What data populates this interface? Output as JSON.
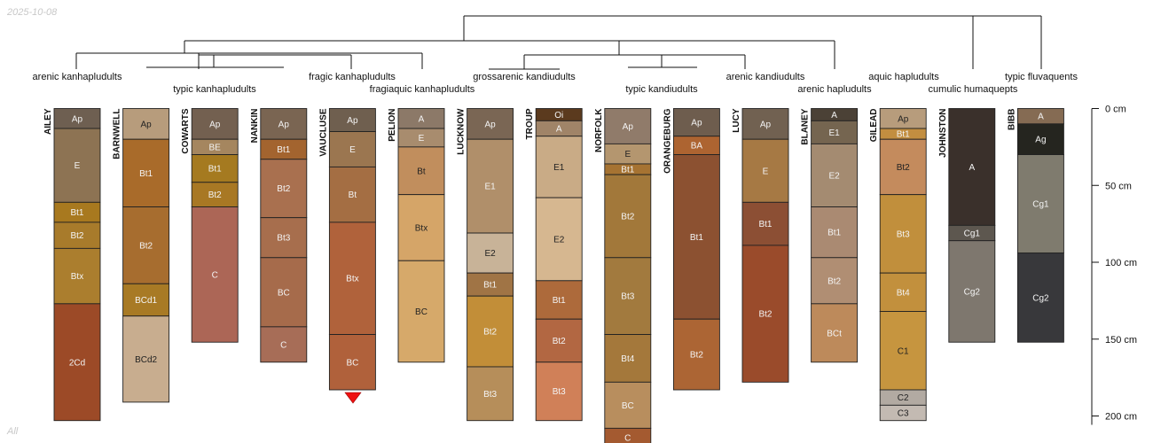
{
  "header": {
    "date": "2025-10-08"
  },
  "footer": {
    "note": "All"
  },
  "depth_axis": {
    "unit": "cm",
    "max_depth": 200,
    "ticks": [
      0,
      50,
      100,
      150,
      200
    ],
    "tick_labels": [
      "0 cm",
      "50 cm",
      "100 cm",
      "150 cm",
      "200 cm"
    ]
  },
  "dendrogram_labels": [
    "arenic kanhapludults",
    "typic kanhapludults",
    "fragic kanhapludults",
    "fragiaquic kanhapludults",
    "grossarenic kandiudults",
    "typic kandiudults",
    "arenic kandiudults",
    "arenic hapludults",
    "aquic hapludults",
    "cumulic humaquepts",
    "typic fluvaquents"
  ],
  "profiles": [
    {
      "name": "AILEY",
      "horizons": [
        {
          "name": "Ap",
          "top": 0,
          "bottom": 13,
          "color": "#6e5f51"
        },
        {
          "name": "E",
          "top": 13,
          "bottom": 61,
          "color": "#8d7353"
        },
        {
          "name": "Bt1",
          "top": 61,
          "bottom": 74,
          "color": "#a8791f"
        },
        {
          "name": "Bt2",
          "top": 74,
          "bottom": 91,
          "color": "#a87b2b"
        },
        {
          "name": "Btx",
          "top": 91,
          "bottom": 127,
          "color": "#ab7e2e"
        },
        {
          "name": "2Cd",
          "top": 127,
          "bottom": 203,
          "color": "#9c4a27"
        }
      ]
    },
    {
      "name": "BARNWELL",
      "horizons": [
        {
          "name": "Ap",
          "top": 0,
          "bottom": 20,
          "color": "#b79c7c"
        },
        {
          "name": "Bt1",
          "top": 20,
          "bottom": 64,
          "color": "#a96b2a"
        },
        {
          "name": "Bt2",
          "top": 64,
          "bottom": 114,
          "color": "#a76d2f"
        },
        {
          "name": "BCd1",
          "top": 114,
          "bottom": 135,
          "color": "#a87a25"
        },
        {
          "name": "BCd2",
          "top": 135,
          "bottom": 191,
          "color": "#c8ad8f"
        }
      ]
    },
    {
      "name": "COWARTS",
      "horizons": [
        {
          "name": "Ap",
          "top": 0,
          "bottom": 20,
          "color": "#736050"
        },
        {
          "name": "BE",
          "top": 20,
          "bottom": 30,
          "color": "#a5865f"
        },
        {
          "name": "Bt1",
          "top": 30,
          "bottom": 48,
          "color": "#a57a20"
        },
        {
          "name": "Bt2",
          "top": 48,
          "bottom": 64,
          "color": "#a87824"
        },
        {
          "name": "C",
          "top": 64,
          "bottom": 152,
          "color": "#ac6656"
        }
      ]
    },
    {
      "name": "NANKIN",
      "horizons": [
        {
          "name": "Ap",
          "top": 0,
          "bottom": 20,
          "color": "#7a6552"
        },
        {
          "name": "Bt1",
          "top": 20,
          "bottom": 33,
          "color": "#a3642f"
        },
        {
          "name": "Bt2",
          "top": 33,
          "bottom": 71,
          "color": "#a9704f"
        },
        {
          "name": "Bt3",
          "top": 71,
          "bottom": 97,
          "color": "#a76e4d"
        },
        {
          "name": "BC",
          "top": 97,
          "bottom": 142,
          "color": "#a66b4b"
        },
        {
          "name": "C",
          "top": 142,
          "bottom": 165,
          "color": "#a76d57"
        }
      ]
    },
    {
      "name": "VAUCLUSE",
      "horizons": [
        {
          "name": "Ap",
          "top": 0,
          "bottom": 15,
          "color": "#6f5f4f"
        },
        {
          "name": "E",
          "top": 15,
          "bottom": 38,
          "color": "#9b7650"
        },
        {
          "name": "Bt",
          "top": 38,
          "bottom": 74,
          "color": "#a46e43"
        },
        {
          "name": "Btx",
          "top": 74,
          "bottom": 147,
          "color": "#b0623b"
        },
        {
          "name": "BC",
          "top": 147,
          "bottom": 183,
          "color": "#b0613b"
        }
      ]
    },
    {
      "name": "PELION",
      "horizons": [
        {
          "name": "A",
          "top": 0,
          "bottom": 13,
          "color": "#8c7968"
        },
        {
          "name": "E",
          "top": 13,
          "bottom": 25,
          "color": "#a88c6e"
        },
        {
          "name": "Bt",
          "top": 25,
          "bottom": 56,
          "color": "#c18e5d"
        },
        {
          "name": "Btx",
          "top": 56,
          "bottom": 99,
          "color": "#d5a568"
        },
        {
          "name": "BC",
          "top": 99,
          "bottom": 165,
          "color": "#d6a96a"
        }
      ]
    },
    {
      "name": "LUCKNOW",
      "horizons": [
        {
          "name": "Ap",
          "top": 0,
          "bottom": 20,
          "color": "#7a6654"
        },
        {
          "name": "E1",
          "top": 20,
          "bottom": 81,
          "color": "#b08f6a"
        },
        {
          "name": "E2",
          "top": 81,
          "bottom": 107,
          "color": "#c8b398"
        },
        {
          "name": "Bt1",
          "top": 107,
          "bottom": 122,
          "color": "#a07445"
        },
        {
          "name": "Bt2",
          "top": 122,
          "bottom": 168,
          "color": "#c28e38"
        },
        {
          "name": "Bt3",
          "top": 168,
          "bottom": 203,
          "color": "#b68e5a"
        }
      ]
    },
    {
      "name": "TROUP",
      "horizons": [
        {
          "name": "Oi",
          "top": 0,
          "bottom": 8,
          "color": "#5b3a1e"
        },
        {
          "name": "A",
          "top": 8,
          "bottom": 18,
          "color": "#a08468"
        },
        {
          "name": "E1",
          "top": 18,
          "bottom": 58,
          "color": "#c9ab86"
        },
        {
          "name": "E2",
          "top": 58,
          "bottom": 112,
          "color": "#d6b790"
        },
        {
          "name": "Bt1",
          "top": 112,
          "bottom": 137,
          "color": "#ad6a3b"
        },
        {
          "name": "Bt2",
          "top": 137,
          "bottom": 165,
          "color": "#b26742"
        },
        {
          "name": "Bt3",
          "top": 165,
          "bottom": 203,
          "color": "#d08058"
        }
      ]
    },
    {
      "name": "NORFOLK",
      "horizons": [
        {
          "name": "Ap",
          "top": 0,
          "bottom": 23,
          "color": "#907b6a"
        },
        {
          "name": "E",
          "top": 23,
          "bottom": 36,
          "color": "#b4966f"
        },
        {
          "name": "Bt1",
          "top": 36,
          "bottom": 43,
          "color": "#a67332"
        },
        {
          "name": "Bt2",
          "top": 43,
          "bottom": 97,
          "color": "#a2783a"
        },
        {
          "name": "Bt3",
          "top": 97,
          "bottom": 147,
          "color": "#a27a3e"
        },
        {
          "name": "Bt4",
          "top": 147,
          "bottom": 178,
          "color": "#a4783b"
        },
        {
          "name": "BC",
          "top": 178,
          "bottom": 208,
          "color": "#b88e5e"
        },
        {
          "name": "C",
          "top": 208,
          "bottom": 220,
          "color": "#a45a30"
        }
      ]
    },
    {
      "name": "ORANGEBURG",
      "horizons": [
        {
          "name": "Ap",
          "top": 0,
          "bottom": 18,
          "color": "#6e5d4e"
        },
        {
          "name": "BA",
          "top": 18,
          "bottom": 30,
          "color": "#ad6431"
        },
        {
          "name": "Bt1",
          "top": 30,
          "bottom": 137,
          "color": "#8c5131"
        },
        {
          "name": "Bt2",
          "top": 137,
          "bottom": 183,
          "color": "#ac6534"
        }
      ]
    },
    {
      "name": "LUCY",
      "horizons": [
        {
          "name": "Ap",
          "top": 0,
          "bottom": 20,
          "color": "#716151"
        },
        {
          "name": "E",
          "top": 20,
          "bottom": 61,
          "color": "#a67944"
        },
        {
          "name": "Bt1",
          "top": 61,
          "bottom": 89,
          "color": "#8c4f34"
        },
        {
          "name": "Bt2",
          "top": 89,
          "bottom": 178,
          "color": "#9a4b2b"
        }
      ]
    },
    {
      "name": "BLANEY",
      "horizons": [
        {
          "name": "A",
          "top": 0,
          "bottom": 8,
          "color": "#4b4136"
        },
        {
          "name": "E1",
          "top": 8,
          "bottom": 23,
          "color": "#756550"
        },
        {
          "name": "E2",
          "top": 23,
          "bottom": 64,
          "color": "#a48b71"
        },
        {
          "name": "Bt1",
          "top": 64,
          "bottom": 97,
          "color": "#aa8a72"
        },
        {
          "name": "Bt2",
          "top": 97,
          "bottom": 127,
          "color": "#b08e73"
        },
        {
          "name": "BCt",
          "top": 127,
          "bottom": 165,
          "color": "#bd8a5b"
        }
      ]
    },
    {
      "name": "GILEAD",
      "horizons": [
        {
          "name": "Ap",
          "top": 0,
          "bottom": 13,
          "color": "#b79c7c"
        },
        {
          "name": "Bt1",
          "top": 13,
          "bottom": 20,
          "color": "#c28e40"
        },
        {
          "name": "Bt2",
          "top": 20,
          "bottom": 56,
          "color": "#c48b5d"
        },
        {
          "name": "Bt3",
          "top": 56,
          "bottom": 107,
          "color": "#c18f3c"
        },
        {
          "name": "Bt4",
          "top": 107,
          "bottom": 132,
          "color": "#c2903d"
        },
        {
          "name": "C1",
          "top": 132,
          "bottom": 183,
          "color": "#c6953f"
        },
        {
          "name": "C2",
          "top": 183,
          "bottom": 193,
          "color": "#b2aaa2"
        },
        {
          "name": "C3",
          "top": 193,
          "bottom": 203,
          "color": "#c3bab2"
        }
      ]
    },
    {
      "name": "JOHNSTON",
      "horizons": [
        {
          "name": "A",
          "top": 0,
          "bottom": 76,
          "color": "#3a302b"
        },
        {
          "name": "Cg1",
          "top": 76,
          "bottom": 86,
          "color": "#5d574f"
        },
        {
          "name": "Cg2",
          "top": 86,
          "bottom": 152,
          "color": "#7e776e"
        }
      ]
    },
    {
      "name": "BIBB",
      "horizons": [
        {
          "name": "A",
          "top": 0,
          "bottom": 10,
          "color": "#856b53"
        },
        {
          "name": "Ag",
          "top": 10,
          "bottom": 30,
          "color": "#25251f"
        },
        {
          "name": "Cg1",
          "top": 30,
          "bottom": 94,
          "color": "#7f7b6e"
        },
        {
          "name": "Cg2",
          "top": 94,
          "bottom": 152,
          "color": "#38383b"
        }
      ]
    }
  ]
}
